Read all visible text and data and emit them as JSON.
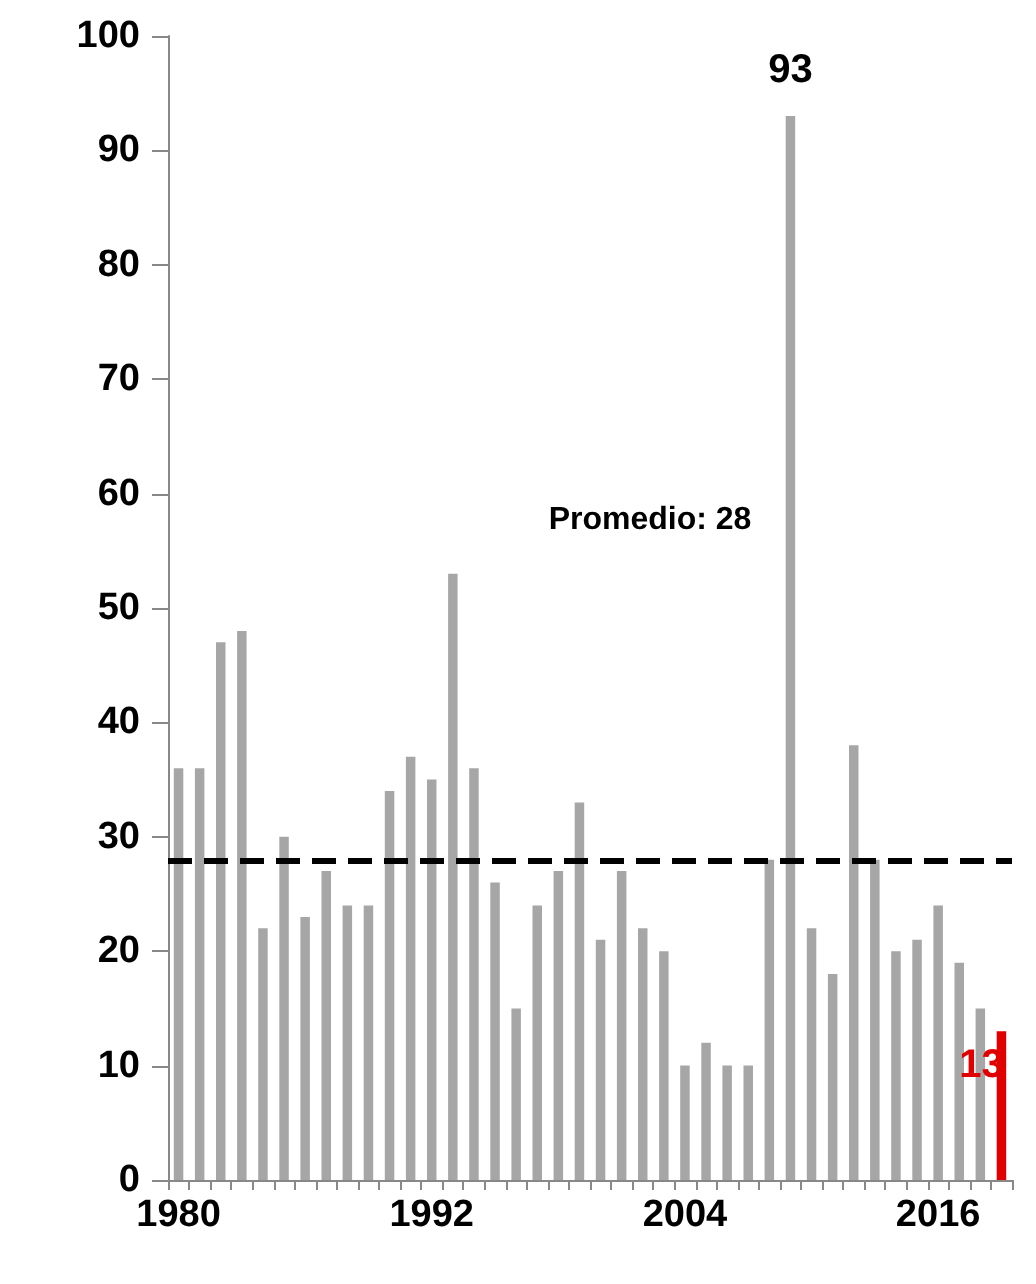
{
  "chart_data": {
    "type": "bar",
    "categories": [
      "1980",
      null,
      null,
      null,
      null,
      null,
      null,
      null,
      null,
      null,
      null,
      null,
      "1992",
      null,
      null,
      null,
      null,
      null,
      null,
      null,
      null,
      null,
      null,
      null,
      "2004",
      null,
      null,
      null,
      null,
      null,
      null,
      null,
      null,
      null,
      null,
      null,
      "2016",
      null,
      null,
      null
    ],
    "values": [
      36,
      36,
      47,
      48,
      22,
      30,
      23,
      27,
      24,
      24,
      34,
      37,
      35,
      53,
      36,
      26,
      15,
      24,
      27,
      33,
      21,
      27,
      22,
      20,
      10,
      12,
      10,
      10,
      28,
      93,
      22,
      18,
      38,
      28,
      20,
      21,
      24,
      19,
      15,
      13
    ],
    "value_labels": [
      null,
      null,
      null,
      null,
      null,
      null,
      null,
      null,
      null,
      null,
      null,
      null,
      null,
      null,
      null,
      null,
      null,
      null,
      null,
      null,
      null,
      null,
      null,
      null,
      null,
      null,
      null,
      null,
      null,
      "93",
      null,
      null,
      null,
      null,
      null,
      null,
      null,
      null,
      null,
      "13"
    ],
    "colors": [
      "#a6a6a6",
      "#a6a6a6",
      "#a6a6a6",
      "#a6a6a6",
      "#a6a6a6",
      "#a6a6a6",
      "#a6a6a6",
      "#a6a6a6",
      "#a6a6a6",
      "#a6a6a6",
      "#a6a6a6",
      "#a6a6a6",
      "#a6a6a6",
      "#a6a6a6",
      "#a6a6a6",
      "#a6a6a6",
      "#a6a6a6",
      "#a6a6a6",
      "#a6a6a6",
      "#a6a6a6",
      "#a6a6a6",
      "#a6a6a6",
      "#a6a6a6",
      "#a6a6a6",
      "#a6a6a6",
      "#a6a6a6",
      "#a6a6a6",
      "#a6a6a6",
      "#a6a6a6",
      "#a6a6a6",
      "#a6a6a6",
      "#a6a6a6",
      "#a6a6a6",
      "#a6a6a6",
      "#a6a6a6",
      "#a6a6a6",
      "#a6a6a6",
      "#a6a6a6",
      "#a6a6a6",
      "#e00000"
    ],
    "ylim": [
      0,
      100
    ],
    "yticks": [
      0,
      10,
      20,
      30,
      40,
      50,
      60,
      70,
      80,
      90,
      100
    ],
    "ref_lines": [
      {
        "axis": "y",
        "value": 28,
        "label": "Promedio: 28",
        "color": "#000000",
        "line_style": "dashed"
      }
    ],
    "grid": false
  }
}
